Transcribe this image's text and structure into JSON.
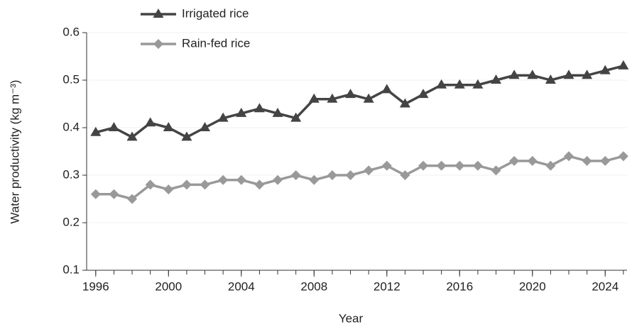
{
  "chart_data": {
    "type": "line",
    "x_label": "Year",
    "y_label": "Water productivity (kg m⁻³)",
    "x": [
      1996,
      1997,
      1998,
      1999,
      2000,
      2001,
      2002,
      2003,
      2004,
      2005,
      2006,
      2007,
      2008,
      2009,
      2010,
      2011,
      2012,
      2013,
      2014,
      2015,
      2016,
      2017,
      2018,
      2019,
      2020,
      2021,
      2022,
      2023,
      2024,
      2025
    ],
    "series": [
      {
        "name": "Irrigated rice",
        "color": "#444444",
        "marker": "triangle",
        "values": [
          0.39,
          0.4,
          0.38,
          0.41,
          0.4,
          0.38,
          0.4,
          0.42,
          0.43,
          0.44,
          0.43,
          0.42,
          0.46,
          0.46,
          0.47,
          0.46,
          0.48,
          0.45,
          0.47,
          0.49,
          0.49,
          0.49,
          0.5,
          0.51,
          0.51,
          0.5,
          0.51,
          0.51,
          0.52,
          0.53
        ]
      },
      {
        "name": "Rain-fed rice",
        "color": "#999999",
        "marker": "diamond",
        "values": [
          0.26,
          0.26,
          0.25,
          0.28,
          0.27,
          0.28,
          0.28,
          0.29,
          0.29,
          0.28,
          0.29,
          0.3,
          0.29,
          0.3,
          0.3,
          0.31,
          0.32,
          0.3,
          0.32,
          0.32,
          0.32,
          0.32,
          0.31,
          0.33,
          0.33,
          0.32,
          0.34,
          0.33,
          0.33,
          0.34
        ]
      }
    ],
    "xlim": [
      1995.5,
      2025.2
    ],
    "xticks": [
      1996,
      2000,
      2004,
      2008,
      2012,
      2016,
      2020,
      2024
    ],
    "ylim": [
      0.1,
      0.6
    ],
    "yticks": [
      0.1,
      0.2,
      0.3,
      0.4,
      0.5,
      0.6
    ],
    "grid": true,
    "legend": "upper-left"
  }
}
